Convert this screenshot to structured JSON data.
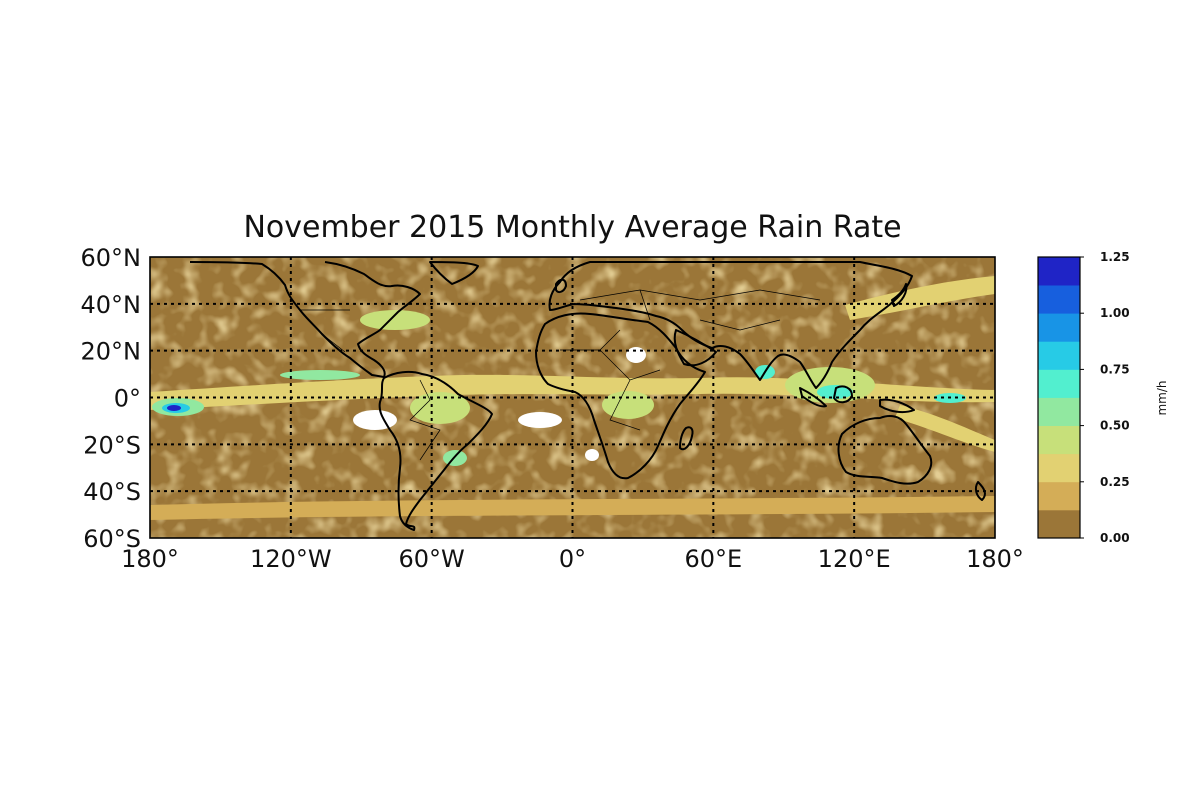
{
  "title": "November 2015 Monthly Average Rain Rate",
  "colors": {
    "land_base": "#9b7638",
    "frame": "#000000",
    "coast": "#000000",
    "no_data": "#ffffff"
  },
  "map": {
    "projection": "equirectangular",
    "lon_range": [
      -180,
      180
    ],
    "lat_range": [
      -60,
      60
    ],
    "grid": "dotted, every 60° longitude and 20° latitude",
    "lat_tick_labels": [
      "60°N",
      "40°N",
      "20°N",
      "0°",
      "20°S",
      "40°S",
      "60°S"
    ],
    "lon_tick_labels": [
      "180°",
      "120°W",
      "60°W",
      "0°",
      "60°E",
      "120°E",
      "180°"
    ]
  },
  "colorbar": {
    "label": "mm/h",
    "tick_labels": [
      "0.00",
      "0.25",
      "0.50",
      "0.75",
      "1.00",
      "1.25"
    ],
    "range": [
      0,
      1.25
    ],
    "levels": [
      {
        "from": 0.0,
        "to": 0.125,
        "color": "#9b7638"
      },
      {
        "from": 0.125,
        "to": 0.25,
        "color": "#d4ad57"
      },
      {
        "from": 0.25,
        "to": 0.375,
        "color": "#e2d172"
      },
      {
        "from": 0.375,
        "to": 0.5,
        "color": "#c7e07a"
      },
      {
        "from": 0.5,
        "to": 0.625,
        "color": "#91e8a0"
      },
      {
        "from": 0.625,
        "to": 0.75,
        "color": "#52efcf"
      },
      {
        "from": 0.75,
        "to": 0.875,
        "color": "#27cbe6"
      },
      {
        "from": 0.875,
        "to": 1.0,
        "color": "#1894e6"
      },
      {
        "from": 1.0,
        "to": 1.125,
        "color": "#175fde"
      },
      {
        "from": 1.125,
        "to": 1.25,
        "color": "#1f24c6"
      }
    ]
  }
}
